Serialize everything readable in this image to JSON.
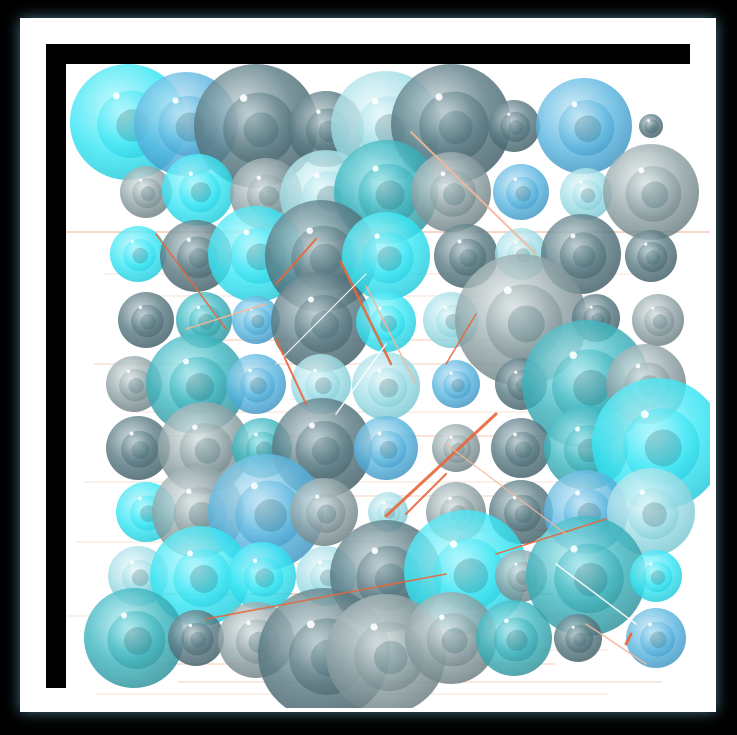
{
  "artwork": {
    "palette": {
      "teal": "#3fb7c1",
      "cyan": "#39e6f5",
      "sky": "#5ab6e0",
      "slate": "#5d7d86",
      "grey": "#8fa3a6",
      "pale": "#9fdde6",
      "orange": "#e8673a",
      "peach": "#f4b89a"
    }
  }
}
